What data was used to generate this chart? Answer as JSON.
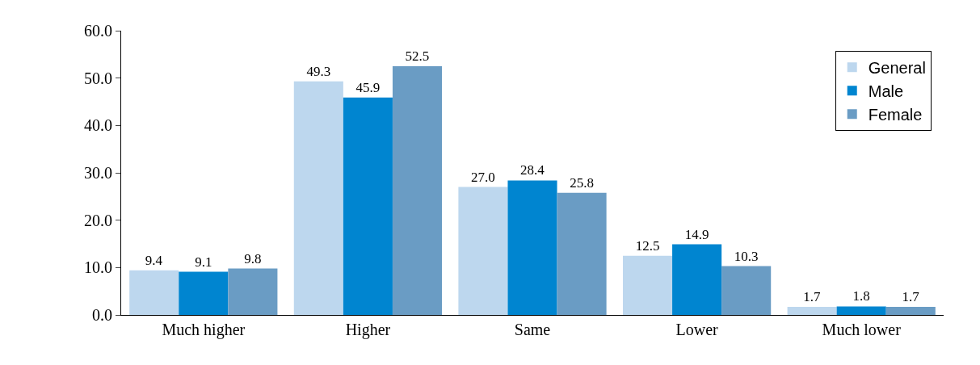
{
  "chart_data": {
    "type": "bar",
    "categories": [
      "Much higher",
      "Higher",
      "Same",
      "Lower",
      "Much lower"
    ],
    "series": [
      {
        "name": "General",
        "color": "#bdd7ee",
        "values": [
          9.4,
          49.3,
          27.0,
          12.5,
          1.7
        ],
        "value_labels": [
          "9.4",
          "49.3",
          "27.0",
          "12.5",
          "1.7"
        ]
      },
      {
        "name": "Male",
        "color": "#0085d0",
        "values": [
          9.1,
          45.9,
          28.4,
          14.9,
          1.8
        ],
        "value_labels": [
          "9.1",
          "45.9",
          "28.4",
          "14.9",
          "1.8"
        ]
      },
      {
        "name": "Female",
        "color": "#6a9cc4",
        "values": [
          9.8,
          52.5,
          25.8,
          10.3,
          1.7
        ],
        "value_labels": [
          "9.8",
          "52.5",
          "25.8",
          "10.3",
          "1.7"
        ]
      }
    ],
    "ylim": [
      0,
      60
    ],
    "yticks": [
      {
        "value": 0,
        "label": "0.0"
      },
      {
        "value": 10,
        "label": "10.0"
      },
      {
        "value": 20,
        "label": "20.0"
      },
      {
        "value": 30,
        "label": "30.0"
      },
      {
        "value": 40,
        "label": "40.0"
      },
      {
        "value": 50,
        "label": "50.0"
      },
      {
        "value": 60,
        "label": "60.0"
      }
    ],
    "legend": "top right"
  }
}
